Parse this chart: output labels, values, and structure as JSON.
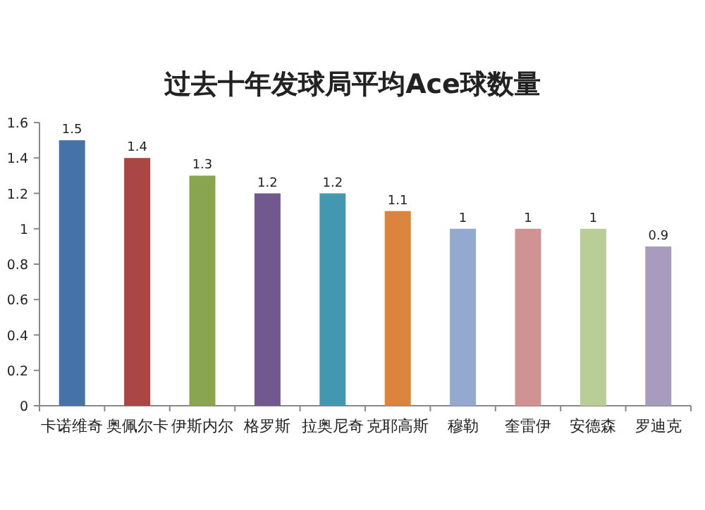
{
  "chart_data": {
    "type": "bar",
    "title": "过去十年发球局平均Ace球数量",
    "categories": [
      "卡诺维奇",
      "奥佩尔卡",
      "伊斯内尔",
      "格罗斯",
      "拉奥尼奇",
      "克耶高斯",
      "穆勒",
      "奎雷伊",
      "安德森",
      "罗迪克"
    ],
    "values": [
      1.5,
      1.4,
      1.3,
      1.2,
      1.2,
      1.1,
      1,
      1,
      1,
      0.9
    ],
    "colors": [
      "#4572a7",
      "#aa4643",
      "#89a54e",
      "#71588f",
      "#4198af",
      "#db843d",
      "#93a9cf",
      "#d19392",
      "#b9cd96",
      "#a99bbd"
    ],
    "ylim": [
      0,
      1.6
    ],
    "yticks": [
      0,
      0.2,
      0.4,
      0.6,
      0.8,
      1,
      1.2,
      1.4,
      1.6
    ],
    "grid": false,
    "data_labels": true
  }
}
